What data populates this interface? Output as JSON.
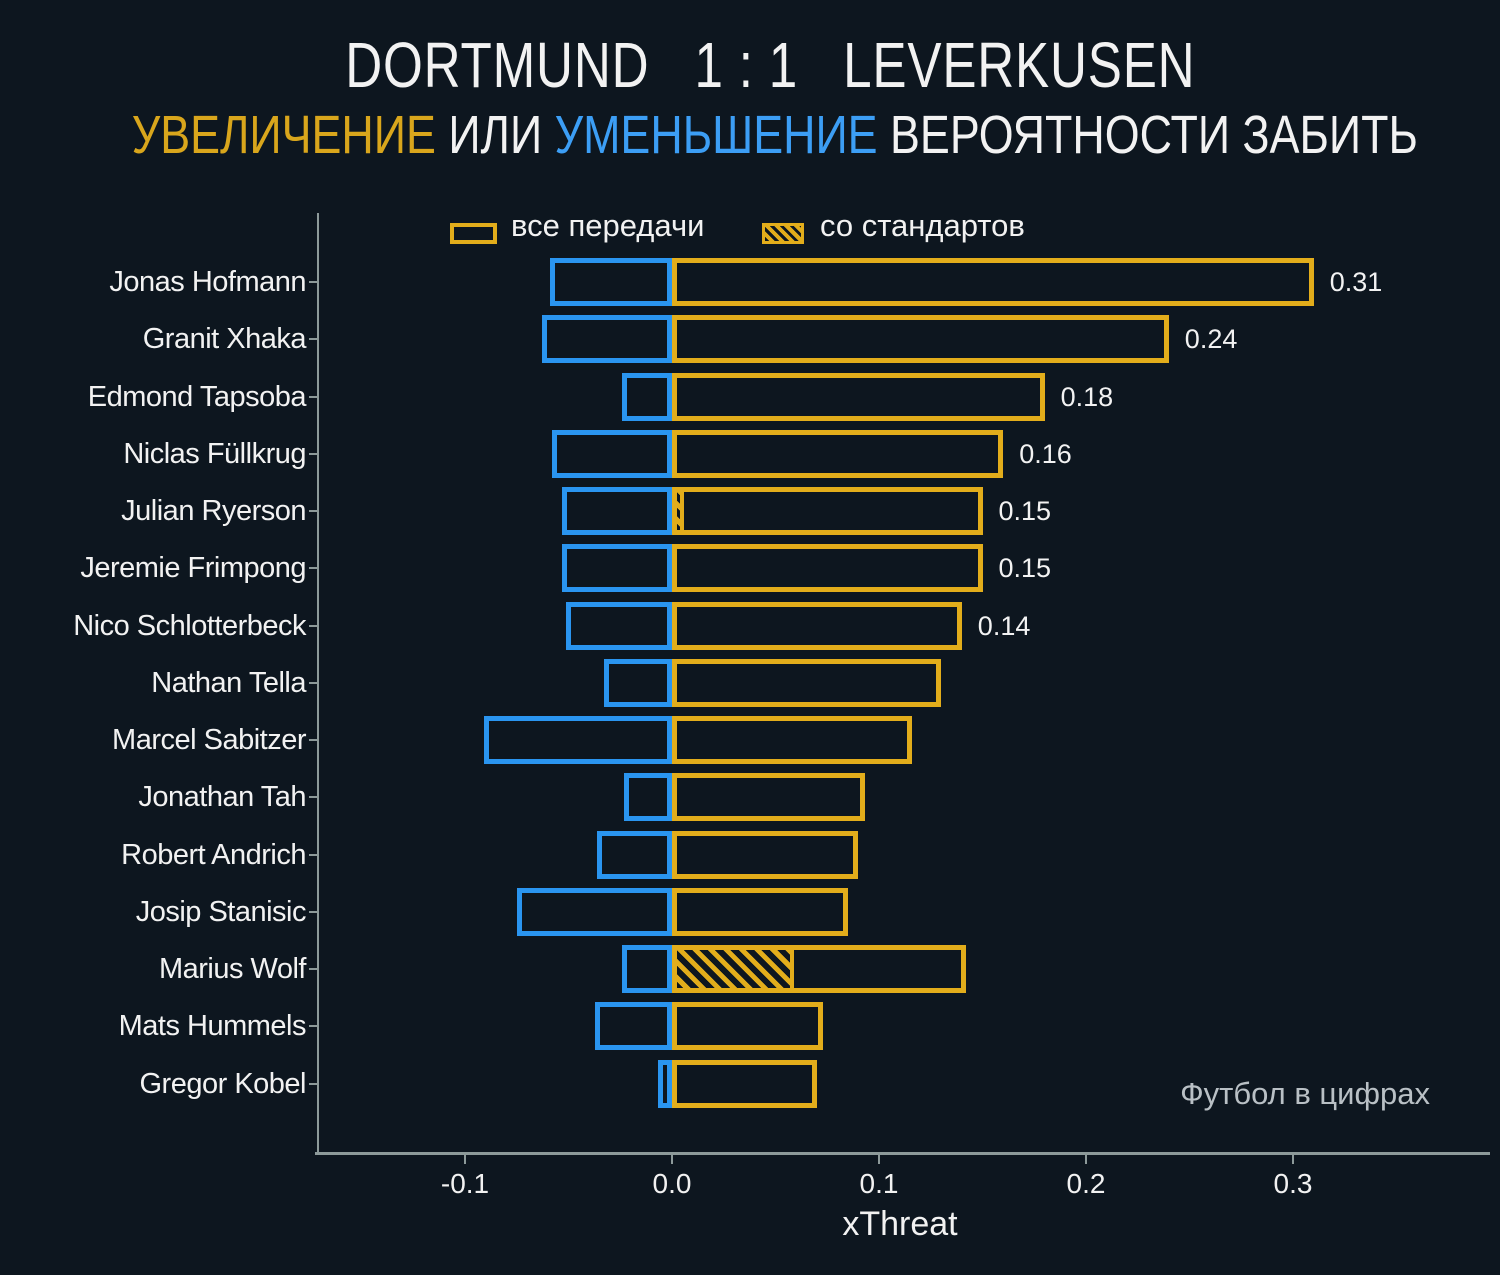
{
  "title": "DORTMUND   1 : 1   LEVERKUSEN",
  "subtitle": {
    "increase_word": "УВЕЛИЧЕНИЕ",
    "or_word": "ИЛИ",
    "decrease_word": "УМЕНЬШЕНИЕ",
    "rest": "ВЕРОЯТНОСТИ ЗАБИТЬ"
  },
  "legend": {
    "all_passes_label": "все передачи",
    "set_pieces_label": "со стандартов"
  },
  "watermark": "Футбол в цифрах",
  "colors": {
    "background": "#0d161f",
    "increase_yellow": "#e2ad1b",
    "decrease_blue": "#2a95f0",
    "subtitle_gold": "#d9a61c",
    "subtitle_blue": "#3c9ef5",
    "text": "#f2f2f2",
    "axis": "#8d9a9a",
    "watermark_gray": "#b9c0c5"
  },
  "chart_data": {
    "type": "bar",
    "orientation": "horizontal",
    "title": "DORTMUND 1 : 1 LEVERKUSEN — УВЕЛИЧЕНИЕ ИЛИ УМЕНЬШЕНИЕ ВЕРОЯТНОСТИ ЗАБИТЬ",
    "xlabel": "xThreat",
    "ylabel": "",
    "xlim": [
      -0.171,
      0.393
    ],
    "x_ticks": [
      -0.1,
      0.0,
      0.1,
      0.2,
      0.3
    ],
    "x_tick_labels": [
      "-0.1",
      "0.0",
      "0.1",
      "0.2",
      "0.3"
    ],
    "grid": false,
    "legend_position": "top",
    "series_meaning": {
      "increase": "все передачи (increase in scoring probability, yellow outline)",
      "set_piece": "со стандартов (from set pieces, yellow hatched)",
      "decrease": "уменьшение (decrease in scoring probability, blue outline)"
    },
    "players": [
      {
        "name": "Jonas Hofmann",
        "increase": 0.31,
        "decrease": -0.059,
        "set_piece": 0,
        "label": "0.31"
      },
      {
        "name": "Granit Xhaka",
        "increase": 0.24,
        "decrease": -0.063,
        "set_piece": 0,
        "label": "0.24"
      },
      {
        "name": "Edmond Tapsoba",
        "increase": 0.18,
        "decrease": -0.024,
        "set_piece": 0,
        "label": "0.18"
      },
      {
        "name": "Niclas Füllkrug",
        "increase": 0.16,
        "decrease": -0.058,
        "set_piece": 0,
        "label": "0.16"
      },
      {
        "name": "Julian Ryerson",
        "increase": 0.15,
        "decrease": -0.053,
        "set_piece": 0.006,
        "label": "0.15"
      },
      {
        "name": "Jeremie Frimpong",
        "increase": 0.15,
        "decrease": -0.053,
        "set_piece": 0,
        "label": "0.15"
      },
      {
        "name": "Nico Schlotterbeck",
        "increase": 0.14,
        "decrease": -0.051,
        "set_piece": 0,
        "label": "0.14"
      },
      {
        "name": "Nathan Tella",
        "increase": 0.13,
        "decrease": -0.033,
        "set_piece": 0
      },
      {
        "name": "Marcel Sabitzer",
        "increase": 0.116,
        "decrease": -0.091,
        "set_piece": 0
      },
      {
        "name": "Jonathan Tah",
        "increase": 0.093,
        "decrease": -0.023,
        "set_piece": 0
      },
      {
        "name": "Robert Andrich",
        "increase": 0.09,
        "decrease": -0.036,
        "set_piece": 0
      },
      {
        "name": "Josip Stanisic",
        "increase": 0.085,
        "decrease": -0.075,
        "set_piece": 0
      },
      {
        "name": "Marius Wolf",
        "increase": 0.142,
        "decrease": -0.024,
        "set_piece": 0.059
      },
      {
        "name": "Mats Hummels",
        "increase": 0.073,
        "decrease": -0.037,
        "set_piece": 0
      },
      {
        "name": "Gregor Kobel",
        "increase": 0.07,
        "decrease": -0.007,
        "set_piece": 0
      }
    ]
  }
}
